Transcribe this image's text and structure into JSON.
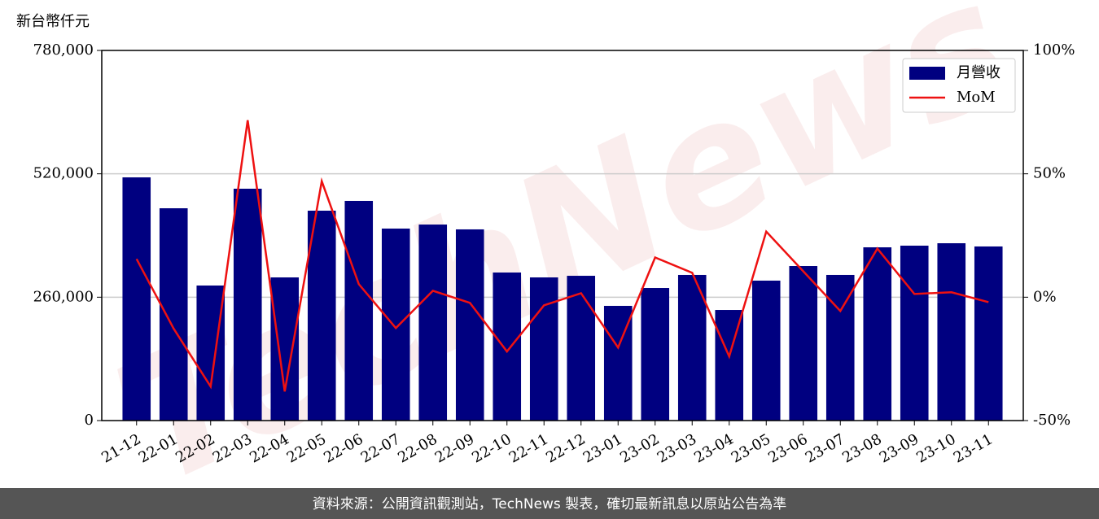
{
  "chart_data": {
    "type": "bar",
    "y_label": "新台幣仟元",
    "watermark": "TechNews",
    "source": "資料來源：公開資訊觀測站，TechNews 製表，確切最新訊息以原站公告為準",
    "categories": [
      "21-12",
      "22-01",
      "22-02",
      "22-03",
      "22-04",
      "22-05",
      "22-06",
      "22-07",
      "22-08",
      "22-09",
      "22-10",
      "22-11",
      "22-12",
      "23-01",
      "23-02",
      "23-03",
      "23-04",
      "23-05",
      "23-06",
      "23-07",
      "23-08",
      "23-09",
      "23-10",
      "23-11"
    ],
    "series": [
      {
        "name": "月營收",
        "type": "bar",
        "color": "#000080",
        "values": [
          512500,
          447400,
          284600,
          488600,
          301700,
          442300,
          462900,
          404600,
          413100,
          402900,
          312000,
          301700,
          305100,
          241700,
          279400,
          306900,
          233100,
          294900,
          325700,
          306900,
          365100,
          368600,
          373700,
          366900
        ]
      },
      {
        "name": "MoM",
        "type": "line",
        "axis": "y2",
        "color": "#ee1111",
        "values": [
          15.5,
          -12.7,
          -36.2,
          71.7,
          -38.2,
          47,
          5.3,
          -12.5,
          2.6,
          -2.3,
          -22,
          -3.3,
          1.6,
          -20.4,
          16.1,
          9.9,
          -24,
          26.6,
          10.5,
          -5.6,
          19.7,
          1.3,
          2,
          -2
        ]
      }
    ],
    "ylim": [
      0,
      780000
    ],
    "yticks": [
      0,
      {
        "value": 260000,
        "label": "260,000"
      },
      {
        "value": 520000,
        "label": "520,000"
      },
      {
        "value": 780000,
        "label": "780,000"
      }
    ],
    "y2lim": [
      -50,
      100
    ],
    "y2ticks": [
      {
        "value": -50,
        "label": "-50%"
      },
      {
        "value": 0,
        "label": "0%"
      },
      {
        "value": 50,
        "label": "50%"
      },
      {
        "value": 100,
        "label": "100%"
      }
    ],
    "grid": true,
    "legend": "upper right"
  }
}
